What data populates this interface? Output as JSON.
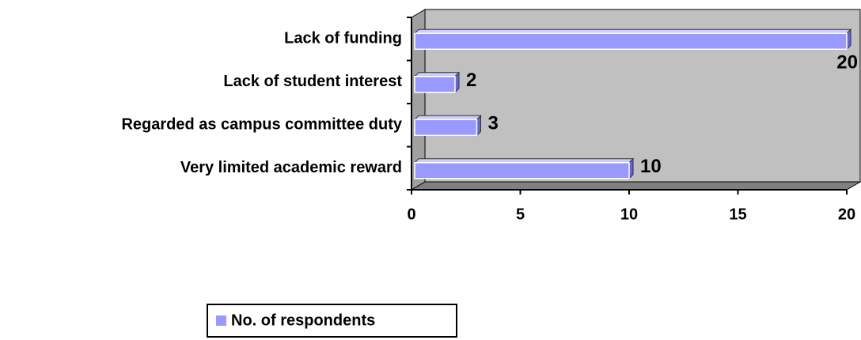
{
  "chart_data": {
    "type": "bar3d_horizontal",
    "categories": [
      "Lack of funding",
      "Lack of student interest",
      "Regarded as campus committee duty",
      "Very limited academic reward"
    ],
    "series": [
      {
        "name": "No. of respondents",
        "color": "#9999ff",
        "values": [
          20,
          2,
          3,
          10
        ]
      }
    ],
    "xlim": [
      0,
      20
    ],
    "xticks": [
      0,
      5,
      10,
      15,
      20
    ],
    "wall_color": "#c0c0c0",
    "legend": "bottom"
  }
}
